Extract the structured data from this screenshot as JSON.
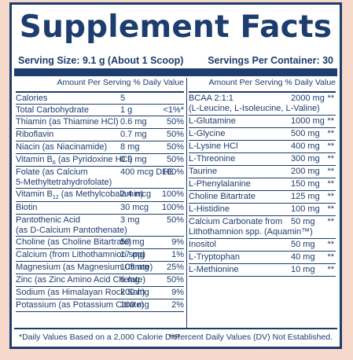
{
  "title": "Supplement Facts",
  "serving_size": "Serving Size: 9.1 g (About 1 Scoop)",
  "servings_per_container": "Servings Per Container: 30",
  "column_header": "Amount Per Serving  % Daily Value",
  "left_rows": [
    {
      "name": "Calories",
      "amount": "5",
      "dv": "",
      "h": 15
    },
    {
      "name": "Total Carbohydrate",
      "amount": "1 g",
      "dv": "<1%*",
      "h": 15
    },
    {
      "name": "Thiamin (as Thiamine HCl)",
      "amount": "0.6 mg",
      "dv": "50%",
      "h": 16
    },
    {
      "name": "Riboflavin",
      "amount": "0.7 mg",
      "dv": "50%",
      "h": 16
    },
    {
      "name": "Niacin (as Niacinamide)",
      "amount": "8 mg",
      "dv": "50%",
      "h": 16
    },
    {
      "name": "Vitamin B",
      "sub": "6",
      "name_rest": " (as Pyridoxine HCl)",
      "amount": "0.9 mg",
      "dv": "50%",
      "h": 16
    },
    {
      "name": "Folate (as Calcium",
      "name2": "5-Methyltetrahydrofolate)",
      "amount": "400 mcg DFE",
      "dv": "100%",
      "h": 28
    },
    {
      "name": "Vitamin B",
      "sub": "12",
      "name_rest": " (as Methylcobalamin)",
      "amount": "2.4 mcg",
      "dv": "100%",
      "h": 17
    },
    {
      "name": "Biotin",
      "amount": "30 mcg",
      "dv": "100%",
      "h": 16
    },
    {
      "name": "Pantothenic Acid",
      "name2": "(as D-Calcium Pantothenate)",
      "amount": "3 mg",
      "dv": "50%",
      "h": 28
    },
    {
      "name": "Choline (as Choline Bitartrate)",
      "amount": "50 mg",
      "dv": "9%",
      "h": 16
    },
    {
      "name": "Calcium (from Lithothamnion spp)",
      "amount": "17 mg",
      "dv": "1%",
      "h": 16
    },
    {
      "name": "Magnesium (as Magnesium Citrate)",
      "amount": "105 mg",
      "dv": "25%",
      "h": 16
    },
    {
      "name": "Zinc (as Zinc Amino Acid Chelate)",
      "amount": "6 mg",
      "dv": "50%",
      "h": 16
    },
    {
      "name": "Sodium (as Himalayan Rock Salt)",
      "amount": "200 mg",
      "dv": "9%",
      "h": 16
    },
    {
      "name": "Potassium (as Potassium Citrate)",
      "amount": "100 mg",
      "dv": "2%",
      "h": 16
    }
  ],
  "right_rows": [
    {
      "name": "BCAA 2:1:1",
      "name2": "(L-Leucine, L-Isoleucine, L-Valine)",
      "amount": "2000 mg",
      "dv": "**",
      "h": 29
    },
    {
      "name": "L-Glutamine",
      "amount": "1000 mg",
      "dv": "**",
      "h": 16
    },
    {
      "name": "L-Glycine",
      "amount": "500 mg",
      "dv": "**",
      "h": 16
    },
    {
      "name": "L-Lysine HCl",
      "amount": "400 mg",
      "dv": "**",
      "h": 16
    },
    {
      "name": "L-Threonine",
      "amount": "300 mg",
      "dv": "**",
      "h": 16
    },
    {
      "name": "Taurine",
      "amount": "200 mg",
      "dv": "**",
      "h": 16
    },
    {
      "name": "L-Phenylalanine",
      "amount": "150 mg",
      "dv": "**",
      "h": 16
    },
    {
      "name": "Choline Bitartrate",
      "amount": "125 mg",
      "dv": "**",
      "h": 16
    },
    {
      "name": "L-Histidine",
      "amount": "100 mg",
      "dv": "**",
      "h": 16
    },
    {
      "name": "Calcium Carbonate from",
      "name2": "Lithothamnion spp. (Aquamin™)",
      "amount": "50 mg",
      "dv": "**",
      "h": 29
    },
    {
      "name": "Inositol",
      "amount": "50 mg",
      "dv": "**",
      "h": 16
    },
    {
      "name": "L-Tryptophan",
      "amount": "40 mg",
      "dv": "**",
      "h": 16
    },
    {
      "name": "L-Methionine",
      "amount": "10 mg",
      "dv": "**",
      "h": 16
    }
  ],
  "footnote_left": "*Daily Values Based on a 2,000 Calorie Diet",
  "footnote_right": "**Percent Daily Values (DV) Not Established.",
  "colors": {
    "ink": "#1c3d6e",
    "background": "#f7d9cc"
  }
}
